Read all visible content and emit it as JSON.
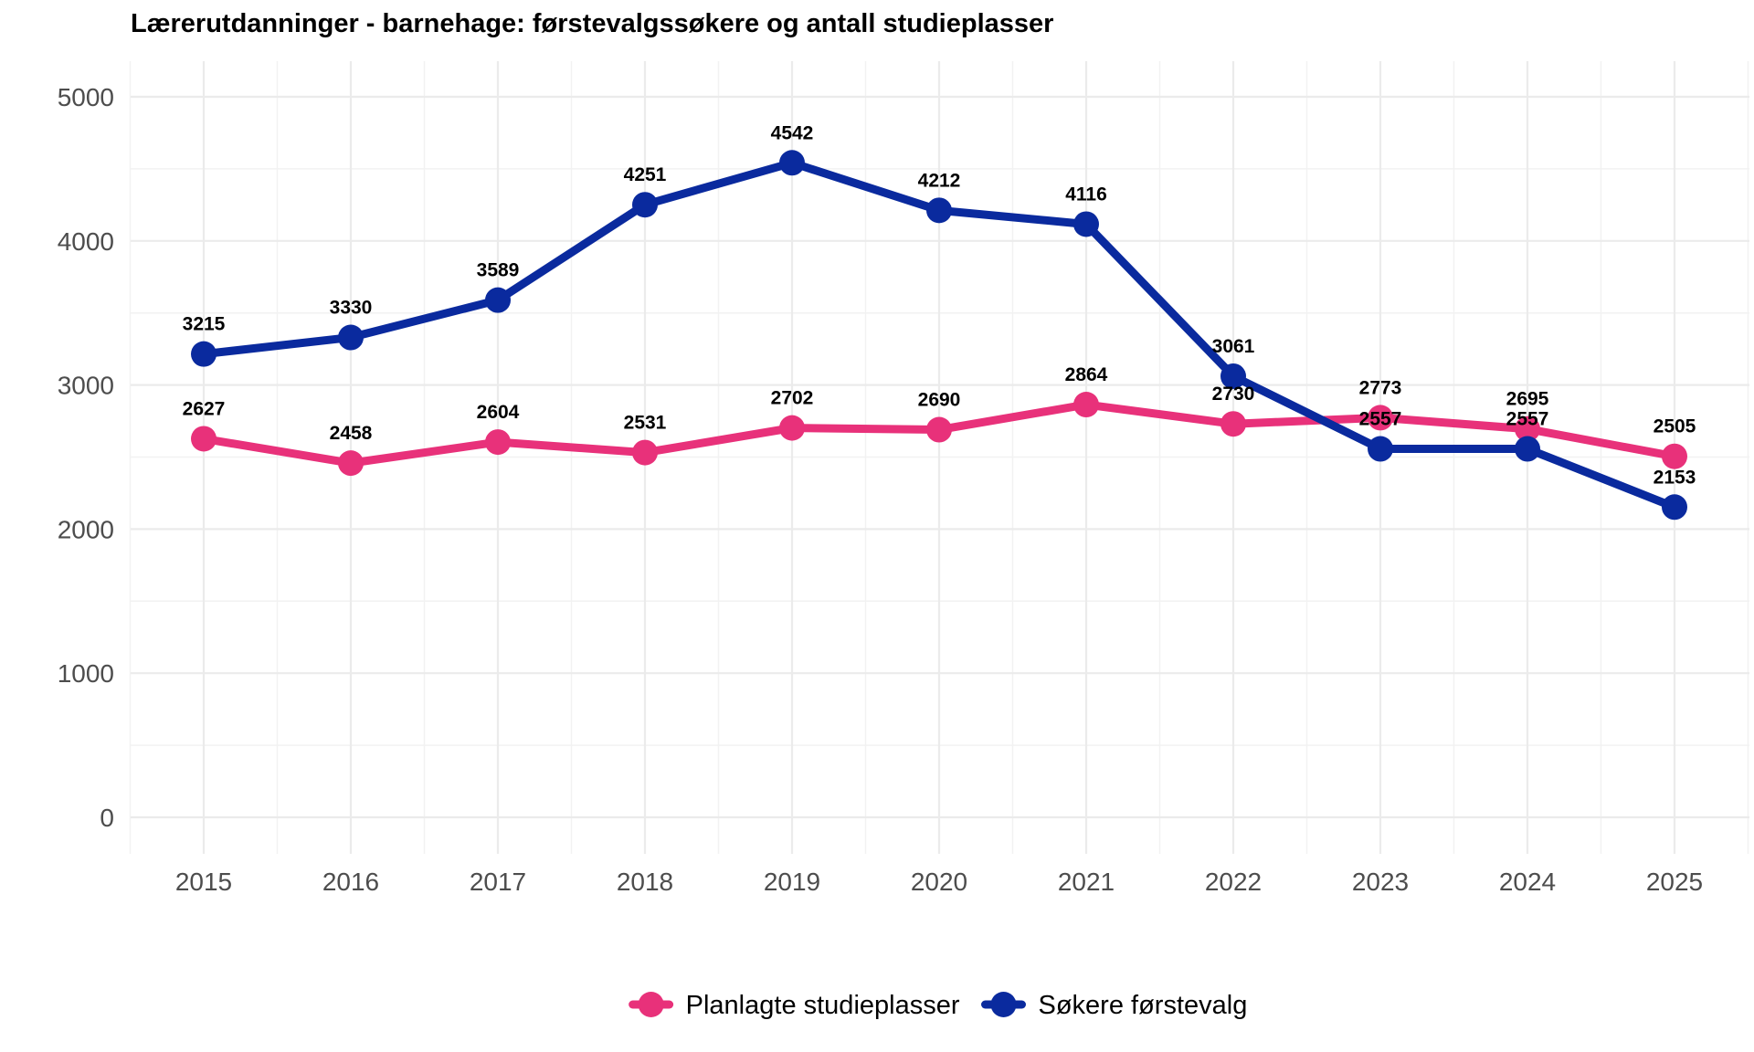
{
  "chart_data": {
    "type": "line",
    "title": "Lærerutdanninger - barnehage: førstevalgssøkere og antall studieplasser",
    "xlabel": "",
    "ylabel": "",
    "x": [
      2015,
      2016,
      2017,
      2018,
      2019,
      2020,
      2021,
      2022,
      2023,
      2024,
      2025
    ],
    "ylim": [
      -250,
      5250
    ],
    "yticks": [
      0,
      1000,
      2000,
      3000,
      4000,
      5000
    ],
    "grid": true,
    "legend_position": "bottom",
    "series": [
      {
        "name": "Planlagte studieplasser",
        "color": "#E8317A",
        "values": [
          2627,
          2458,
          2604,
          2531,
          2702,
          2690,
          2864,
          2730,
          2773,
          2695,
          2505
        ]
      },
      {
        "name": "Søkere førstevalg",
        "color": "#0A2A9E",
        "values": [
          3215,
          3330,
          3589,
          4251,
          4542,
          4212,
          4116,
          3061,
          2557,
          2557,
          2153
        ]
      }
    ]
  }
}
